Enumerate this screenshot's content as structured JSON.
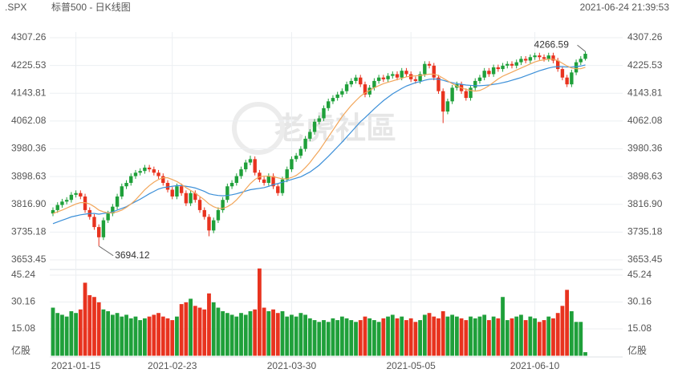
{
  "chart_data": {
    "type": "candlestick",
    "symbol": ".SPX",
    "title": "标普500 - 日K线图",
    "timestamp": "2021-06-24 21:39:53",
    "watermark": "老虎社區",
    "up_color": "#1fa03a",
    "down_color": "#e8331f",
    "ylim": [
      3653.45,
      4307.26
    ],
    "yticks": [
      4307.26,
      4225.53,
      4143.81,
      4062.08,
      3980.36,
      3898.63,
      {
        "value": 3816.9,
        "label": "3816.90"
      },
      3735.18,
      3653.45
    ],
    "volume_unit": "亿股",
    "volume_ylim": [
      0,
      49
    ],
    "volume_ticks": [
      45.24,
      30.16,
      15.08
    ],
    "categories": [
      null,
      null,
      null,
      null,
      null,
      "2021-01-15",
      null,
      null,
      null,
      null,
      null,
      null,
      null,
      null,
      null,
      null,
      null,
      null,
      null,
      null,
      null,
      null,
      null,
      null,
      null,
      null,
      "2021-02-23",
      null,
      null,
      null,
      null,
      null,
      null,
      null,
      null,
      null,
      null,
      null,
      null,
      null,
      null,
      null,
      null,
      null,
      null,
      null,
      null,
      null,
      null,
      null,
      null,
      null,
      "2021-03-30",
      null,
      null,
      null,
      null,
      null,
      null,
      null,
      null,
      null,
      null,
      null,
      null,
      null,
      null,
      null,
      null,
      null,
      null,
      null,
      null,
      null,
      null,
      null,
      null,
      null,
      "2021-05-05",
      null,
      null,
      null,
      null,
      null,
      null,
      null,
      null,
      null,
      null,
      null,
      null,
      null,
      null,
      null,
      null,
      null,
      null,
      null,
      null,
      null,
      null,
      null,
      null,
      null,
      null,
      "2021-06-10",
      null,
      null,
      null,
      null,
      null,
      null,
      null,
      null,
      null,
      null,
      null
    ],
    "candles": [
      [
        3790,
        3808,
        3782,
        3800
      ],
      [
        3800,
        3823,
        3792,
        3815
      ],
      [
        3815,
        3833,
        3807,
        3825
      ],
      [
        3825,
        3838,
        3817,
        3830
      ],
      [
        3830,
        3853,
        3822,
        3845
      ],
      [
        3845,
        3858,
        3837,
        3850
      ],
      [
        3850,
        3858,
        3832,
        3840
      ],
      [
        3840,
        3848,
        3792,
        3800
      ],
      [
        3800,
        3808,
        3772,
        3780
      ],
      [
        3780,
        3788,
        3742,
        3750
      ],
      [
        3750,
        3758,
        3694.12,
        3720
      ],
      [
        3720,
        3778,
        3712,
        3770
      ],
      [
        3770,
        3798,
        3762,
        3790
      ],
      [
        3790,
        3818,
        3782,
        3810
      ],
      [
        3810,
        3848,
        3802,
        3840
      ],
      [
        3840,
        3878,
        3832,
        3870
      ],
      [
        3870,
        3888,
        3862,
        3880
      ],
      [
        3880,
        3908,
        3872,
        3900
      ],
      [
        3900,
        3918,
        3892,
        3910
      ],
      [
        3910,
        3923,
        3902,
        3915
      ],
      [
        3915,
        3933,
        3907,
        3925
      ],
      [
        3925,
        3933,
        3912,
        3920
      ],
      [
        3920,
        3928,
        3902,
        3910
      ],
      [
        3910,
        3918,
        3892,
        3900
      ],
      [
        3900,
        3908,
        3872,
        3880
      ],
      [
        3880,
        3888,
        3852,
        3860
      ],
      [
        3860,
        3868,
        3832,
        3840
      ],
      [
        3840,
        3878,
        3832,
        3870
      ],
      [
        3870,
        3878,
        3842,
        3850
      ],
      [
        3850,
        3858,
        3812,
        3820
      ],
      [
        3820,
        3858,
        3812,
        3850
      ],
      [
        3850,
        3858,
        3822,
        3830
      ],
      [
        3830,
        3838,
        3792,
        3800
      ],
      [
        3800,
        3808,
        3772,
        3780
      ],
      [
        3780,
        3788,
        3723,
        3740
      ],
      [
        3740,
        3778,
        3732,
        3770
      ],
      [
        3770,
        3808,
        3762,
        3800
      ],
      [
        3800,
        3838,
        3792,
        3830
      ],
      [
        3830,
        3878,
        3822,
        3870
      ],
      [
        3870,
        3888,
        3862,
        3880
      ],
      [
        3880,
        3908,
        3872,
        3900
      ],
      [
        3900,
        3928,
        3892,
        3920
      ],
      [
        3920,
        3948,
        3912,
        3940
      ],
      [
        3940,
        3960,
        3932,
        3950
      ],
      [
        3950,
        3958,
        3902,
        3910
      ],
      [
        3910,
        3918,
        3882,
        3890
      ],
      [
        3890,
        3898,
        3872,
        3880
      ],
      [
        3880,
        3908,
        3872,
        3900
      ],
      [
        3900,
        3908,
        3862,
        3870
      ],
      [
        3870,
        3878,
        3842,
        3850
      ],
      [
        3850,
        3898,
        3842,
        3890
      ],
      [
        3890,
        3928,
        3882,
        3920
      ],
      [
        3920,
        3958,
        3912,
        3950
      ],
      [
        3950,
        3968,
        3942,
        3960
      ],
      [
        3960,
        3988,
        3952,
        3980
      ],
      [
        3980,
        4018,
        3972,
        4010
      ],
      [
        4010,
        4038,
        4002,
        4030
      ],
      [
        4030,
        4068,
        4022,
        4060
      ],
      [
        4060,
        4078,
        4052,
        4070
      ],
      [
        4070,
        4108,
        4062,
        4100
      ],
      [
        4100,
        4128,
        4092,
        4120
      ],
      [
        4120,
        4138,
        4112,
        4130
      ],
      [
        4130,
        4148,
        4122,
        4140
      ],
      [
        4140,
        4158,
        4132,
        4150
      ],
      [
        4150,
        4178,
        4142,
        4170
      ],
      [
        4170,
        4188,
        4162,
        4180
      ],
      [
        4180,
        4198,
        4172,
        4190
      ],
      [
        4190,
        4198,
        4162,
        4170
      ],
      [
        4170,
        4178,
        4132,
        4140
      ],
      [
        4140,
        4168,
        4132,
        4160
      ],
      [
        4160,
        4188,
        4152,
        4180
      ],
      [
        4180,
        4198,
        4172,
        4190
      ],
      [
        4190,
        4198,
        4177,
        4185
      ],
      [
        4185,
        4203,
        4177,
        4195
      ],
      [
        4195,
        4208,
        4187,
        4200
      ],
      [
        4200,
        4208,
        4182,
        4190
      ],
      [
        4190,
        4218,
        4182,
        4210
      ],
      [
        4210,
        4218,
        4192,
        4200
      ],
      [
        4200,
        4208,
        4177,
        4185
      ],
      [
        4185,
        4193,
        4172,
        4180
      ],
      [
        4180,
        4208,
        4172,
        4200
      ],
      [
        4200,
        4238,
        4192,
        4230
      ],
      [
        4230,
        4238,
        4217,
        4225
      ],
      [
        4225,
        4233,
        4182,
        4190
      ],
      [
        4190,
        4198,
        4142,
        4150
      ],
      [
        4150,
        4158,
        4056,
        4090
      ],
      [
        4090,
        4128,
        4082,
        4120
      ],
      [
        4120,
        4168,
        4112,
        4160
      ],
      [
        4160,
        4178,
        4152,
        4170
      ],
      [
        4170,
        4178,
        4142,
        4150
      ],
      [
        4150,
        4158,
        4122,
        4130
      ],
      [
        4130,
        4168,
        4122,
        4160
      ],
      [
        4160,
        4188,
        4152,
        4180
      ],
      [
        4180,
        4198,
        4172,
        4190
      ],
      [
        4190,
        4218,
        4182,
        4210
      ],
      [
        4210,
        4218,
        4192,
        4200
      ],
      [
        4200,
        4228,
        4192,
        4220
      ],
      [
        4220,
        4228,
        4207,
        4215
      ],
      [
        4215,
        4233,
        4207,
        4225
      ],
      [
        4225,
        4238,
        4217,
        4230
      ],
      [
        4230,
        4238,
        4217,
        4225
      ],
      [
        4225,
        4243,
        4217,
        4235
      ],
      [
        4235,
        4253,
        4227,
        4245
      ],
      [
        4245,
        4253,
        4232,
        4240
      ],
      [
        4240,
        4258,
        4232,
        4250
      ],
      [
        4250,
        4263,
        4242,
        4255
      ],
      [
        4255,
        4263,
        4242,
        4250
      ],
      [
        4250,
        4258,
        4237,
        4245
      ],
      [
        4245,
        4263,
        4237,
        4255
      ],
      [
        4255,
        4263,
        4232,
        4240
      ],
      [
        4240,
        4248,
        4207,
        4215
      ],
      [
        4215,
        4223,
        4182,
        4190
      ],
      [
        4190,
        4198,
        4162,
        4170
      ],
      [
        4170,
        4213,
        4162,
        4205
      ],
      [
        4205,
        4243,
        4197,
        4235
      ],
      [
        4235,
        4253,
        4227,
        4245
      ],
      [
        4245,
        4266.59,
        4240,
        4260
      ]
    ],
    "volumes": [
      27,
      24,
      23,
      22,
      25,
      24,
      26,
      41,
      34,
      33,
      30,
      26,
      25,
      23,
      24,
      22,
      23,
      21,
      22,
      20,
      21,
      22,
      23,
      24,
      22,
      21,
      20,
      22,
      29,
      30,
      32,
      28,
      27,
      26,
      35,
      30,
      27,
      25,
      24,
      23,
      22,
      24,
      23,
      25,
      26,
      49,
      27,
      25,
      26,
      24,
      25,
      22,
      23,
      22,
      24,
      23,
      21,
      20,
      19,
      20,
      19,
      21,
      20,
      22,
      21,
      20,
      19,
      20,
      22,
      21,
      20,
      19,
      21,
      22,
      23,
      21,
      22,
      20,
      21,
      19,
      20,
      23,
      24,
      22,
      21,
      25,
      22,
      23,
      22,
      21,
      20,
      22,
      21,
      22,
      23,
      20,
      22,
      21,
      33,
      20,
      21,
      22,
      23,
      20,
      22,
      21,
      19,
      20,
      22,
      21,
      24,
      28,
      37,
      25,
      19,
      19,
      2
    ],
    "lines": [
      {
        "color": "#3b8fd8",
        "values": [
          3760,
          3765,
          3770,
          3775,
          3780,
          3783,
          3786,
          3788,
          3790,
          3790,
          3788,
          3790,
          3792,
          3795,
          3800,
          3805,
          3810,
          3818,
          3825,
          3832,
          3840,
          3848,
          3855,
          3862,
          3866,
          3868,
          3870,
          3872,
          3872,
          3870,
          3868,
          3865,
          3860,
          3855,
          3848,
          3845,
          3843,
          3842,
          3843,
          3845,
          3848,
          3852,
          3856,
          3860,
          3862,
          3864,
          3866,
          3870,
          3875,
          3878,
          3882,
          3886,
          3890,
          3894,
          3898,
          3905,
          3912,
          3922,
          3932,
          3945,
          3958,
          3972,
          3986,
          4000,
          4015,
          4030,
          4045,
          4060,
          4072,
          4085,
          4098,
          4110,
          4122,
          4132,
          4142,
          4150,
          4158,
          4165,
          4170,
          4175,
          4178,
          4182,
          4185,
          4186,
          4185,
          4182,
          4178,
          4175,
          4172,
          4170,
          4168,
          4167,
          4166,
          4166,
          4167,
          4168,
          4170,
          4172,
          4175,
          4178,
          4182,
          4186,
          4190,
          4195,
          4200,
          4205,
          4210,
          4214,
          4218,
          4221,
          4222,
          4222,
          4221,
          4221,
          4222,
          4224,
          4227
        ]
      },
      {
        "color": "#f2a65a",
        "values": [
          3790,
          3795,
          3800,
          3806,
          3812,
          3818,
          3822,
          3822,
          3818,
          3810,
          3800,
          3795,
          3792,
          3792,
          3795,
          3800,
          3808,
          3818,
          3830,
          3845,
          3860,
          3872,
          3882,
          3890,
          3895,
          3895,
          3890,
          3884,
          3876,
          3866,
          3858,
          3850,
          3840,
          3830,
          3818,
          3810,
          3805,
          3805,
          3810,
          3818,
          3830,
          3845,
          3862,
          3878,
          3890,
          3898,
          3900,
          3900,
          3898,
          3895,
          3892,
          3892,
          3896,
          3902,
          3912,
          3925,
          3940,
          3958,
          3975,
          3995,
          4015,
          4035,
          4055,
          4075,
          4092,
          4108,
          4122,
          4135,
          4145,
          4152,
          4160,
          4166,
          4172,
          4176,
          4180,
          4184,
          4188,
          4192,
          4194,
          4195,
          4196,
          4198,
          4200,
          4200,
          4196,
          4188,
          4180,
          4172,
          4165,
          4160,
          4155,
          4152,
          4150,
          4152,
          4158,
          4166,
          4176,
          4186,
          4194,
          4200,
          4206,
          4212,
          4218,
          4224,
          4230,
          4236,
          4240,
          4242,
          4244,
          4244,
          4240,
          4232,
          4224,
          4218,
          4216,
          4216,
          4220
        ]
      }
    ],
    "annotations": [
      {
        "candle": 116,
        "field": 1
      },
      {
        "candle": 10,
        "field": 2
      }
    ]
  }
}
